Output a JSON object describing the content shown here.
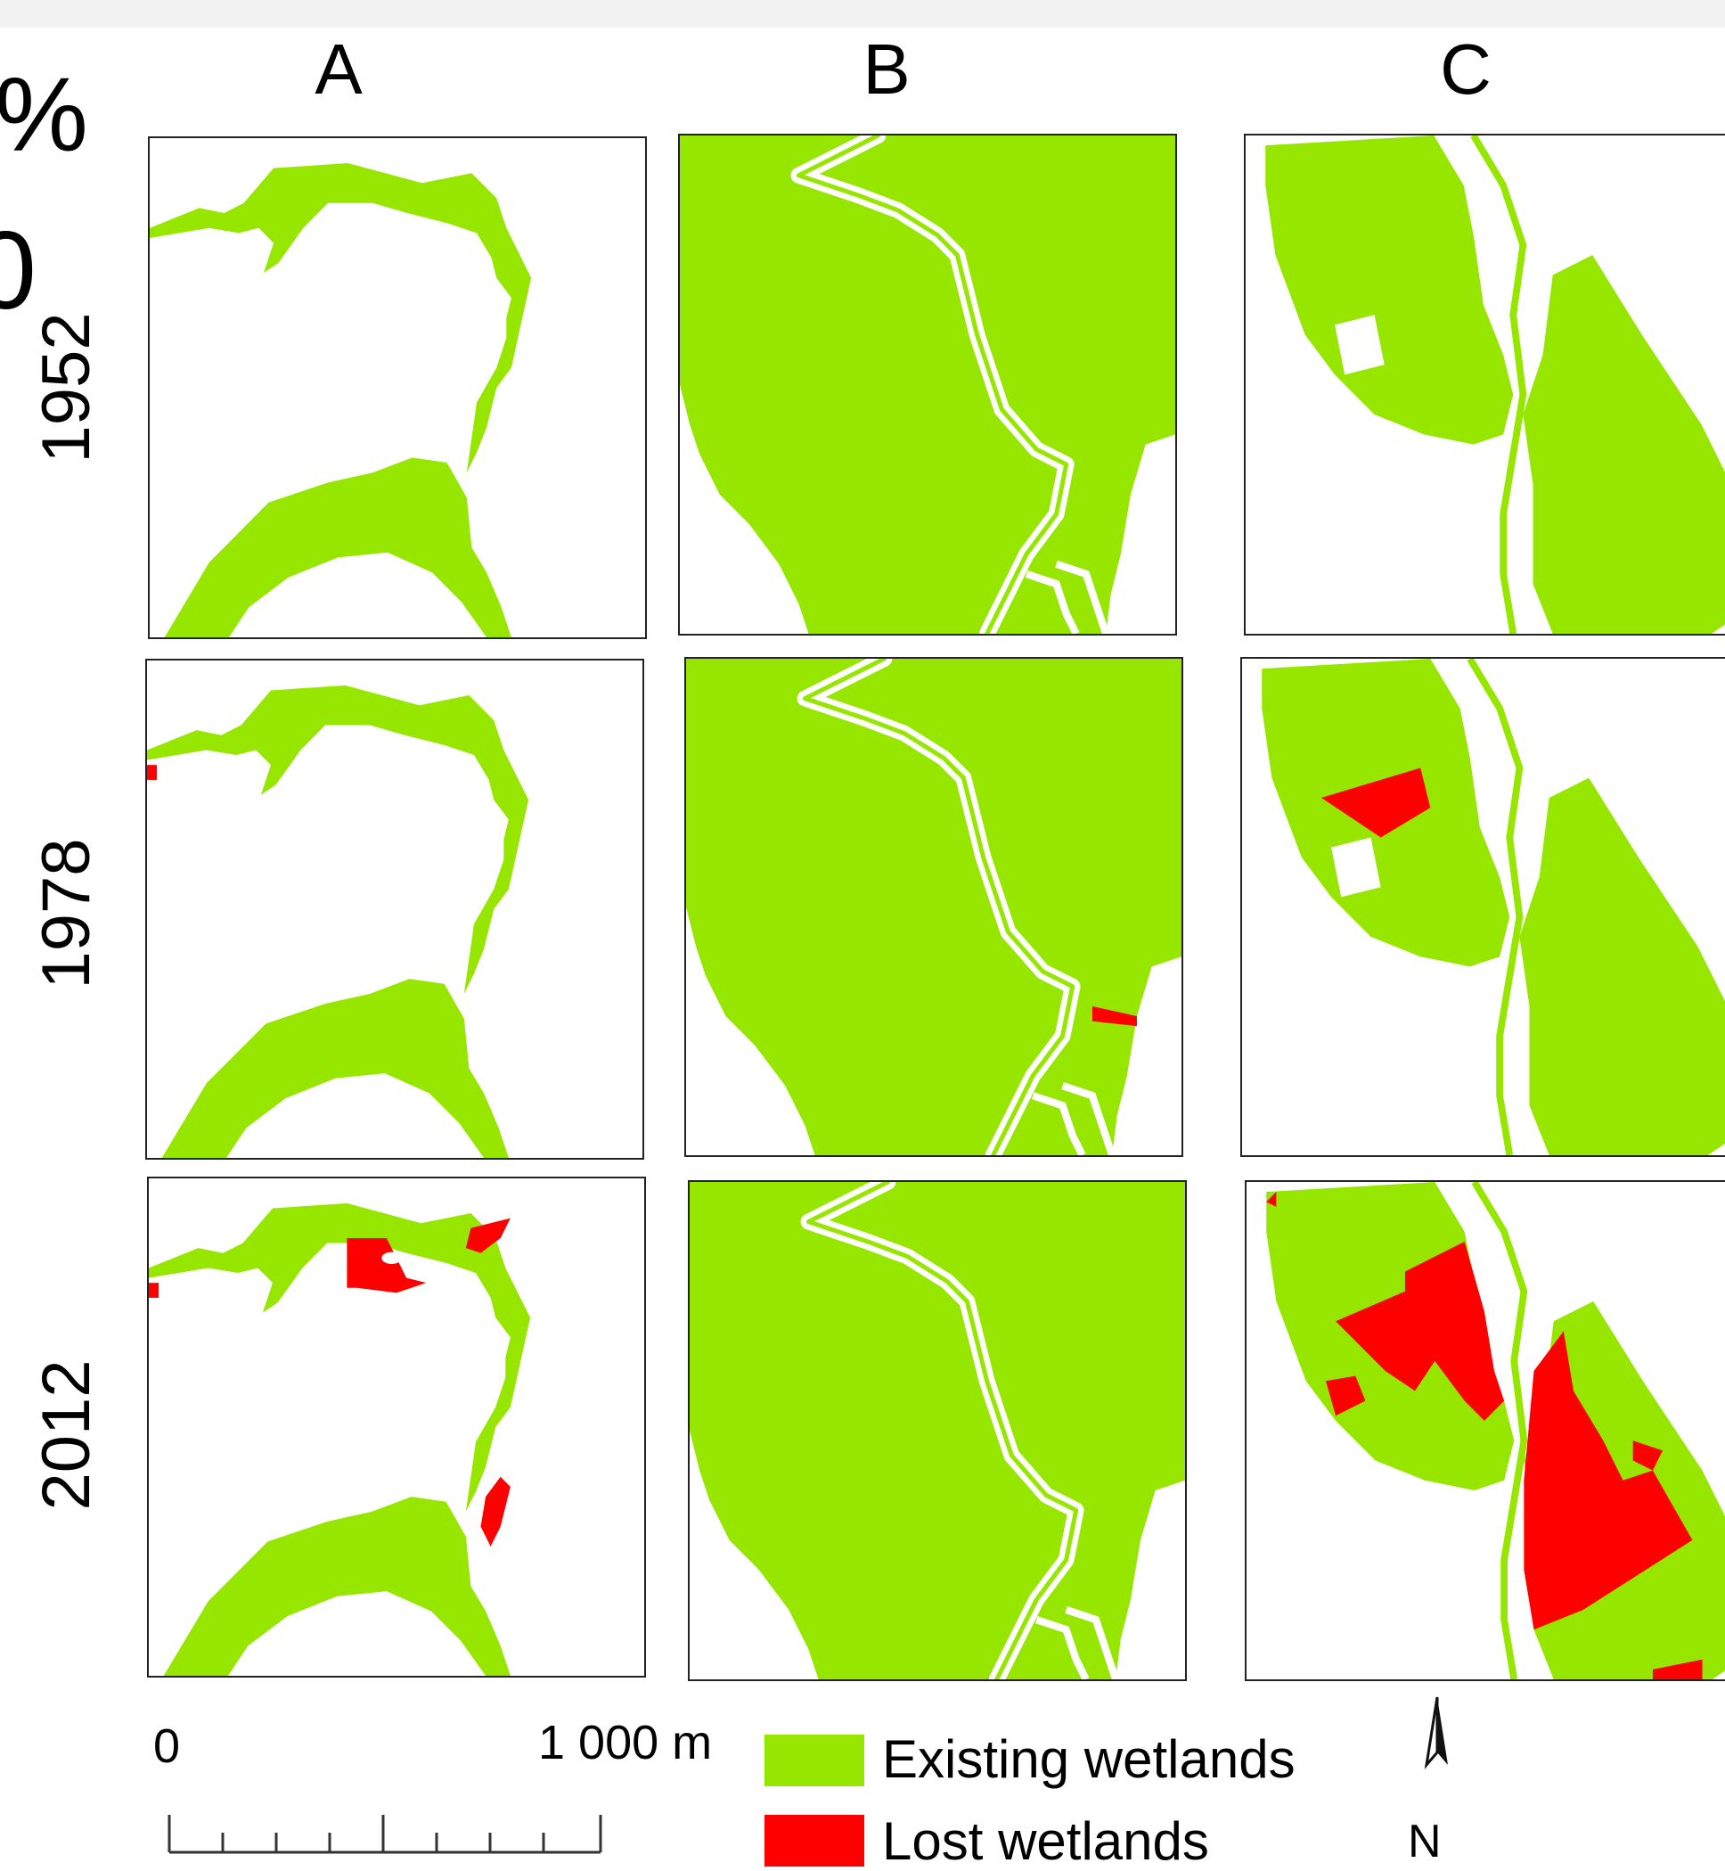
{
  "columns": [
    "A",
    "B",
    "C"
  ],
  "rows": [
    "1952",
    "1978",
    "2012"
  ],
  "cropped_text": {
    "top": "%",
    "second": "0"
  },
  "scale_bar": {
    "start_label": "0",
    "end_label": "1 000 m"
  },
  "legend": [
    {
      "label": "Existing wetlands",
      "color": "#96e600"
    },
    {
      "label": "Lost wetlands",
      "color": "#ff0000"
    }
  ],
  "north_arrow": {
    "label": "N"
  },
  "colors": {
    "existing": "#96e600",
    "lost": "#ff0000",
    "background": "#ffffff"
  }
}
